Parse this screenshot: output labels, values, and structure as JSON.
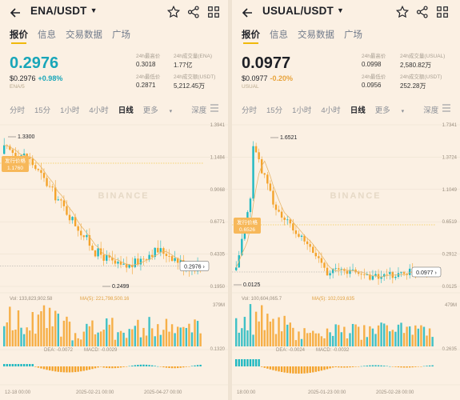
{
  "left": {
    "pair": "ENA/USDT",
    "tabs": [
      "报价",
      "信息",
      "交易数据",
      "广场"
    ],
    "price": "0.2976",
    "price_color": "#18a6b9",
    "sub_price": "$0.2976",
    "change": "+0.98%",
    "change_color": "#18a6b9",
    "tagline": "ENA/5",
    "stats": {
      "high_label": "24h最高价",
      "high": "0.3018",
      "low_label": "24h最低价",
      "low": "0.2871",
      "vol_base_label": "24h成交量(ENA)",
      "vol_base": "1.77亿",
      "vol_quote_label": "24h成交额(USDT)",
      "vol_quote": "5,212.45万"
    },
    "timeframes": [
      "分时",
      "15分",
      "1小时",
      "4小时",
      "日线",
      "更多",
      "深度"
    ],
    "active_timeframe": "日线",
    "chart": {
      "max_label": "1.3300",
      "min_label": "0.2499",
      "axis": [
        "1.3941",
        "1.1484",
        "0.9068",
        "0.6771",
        "0.4335",
        "0.1950"
      ],
      "vol_axis": [
        "379M",
        "0.1320"
      ],
      "current": "0.2976",
      "issue_tag": "发行价格",
      "issue_val": "1.1760",
      "vol_line": "Vol: 133,823,902.58",
      "ma_line": "MA(5): 221,798,500.16",
      "dea_line": "DEA: -0.0072",
      "macd_line": "MACD: -0.0029",
      "dates": [
        "12-18 00:00",
        "2025-02-21 00:00",
        "2025-04-27 00:00"
      ],
      "watermark": "BINANCE",
      "up_color": "#1fb8c1",
      "down_color": "#f4a32b"
    }
  },
  "right": {
    "pair": "USUAL/USDT",
    "tabs": [
      "报价",
      "信息",
      "交易数据",
      "广场"
    ],
    "price": "0.0977",
    "price_color": "#1e2026",
    "sub_price": "$0.0977",
    "change": "-0.20%",
    "change_color": "#e8a33b",
    "tagline": "USUAL",
    "stats": {
      "high_label": "24h最高价",
      "high": "0.0998",
      "low_label": "24h最低价",
      "low": "0.0956",
      "vol_base_label": "24h成交量(USUAL)",
      "vol_base": "2,580.82万",
      "vol_quote_label": "24h成交额(USDT)",
      "vol_quote": "252.28万"
    },
    "timeframes": [
      "分时",
      "15分",
      "1小时",
      "4小时",
      "日线",
      "更多",
      "深度"
    ],
    "active_timeframe": "日线",
    "chart": {
      "max_label": "1.6521",
      "min_label": "0.0125",
      "axis": [
        "1.7341",
        "1.3724",
        "1.1049",
        "0.6519",
        "0.2912",
        "0.0125"
      ],
      "vol_axis": [
        "479M",
        "0.2635"
      ],
      "current": "0.0977",
      "issue_tag": "发行价格",
      "issue_val": "0.6526",
      "vol_line": "Vol: 100,604,065.7",
      "ma_line": "MA(5): 102,019,635",
      "dea_line": "DEA: -0.0024",
      "macd_line": "MACD: -0.0032",
      "dates": [
        "18:00:00",
        "2025-01-23 00:00",
        "2025-02-28 00:00"
      ],
      "watermark": "BINANCE",
      "up_color": "#1fb8c1",
      "down_color": "#f4a32b"
    }
  }
}
